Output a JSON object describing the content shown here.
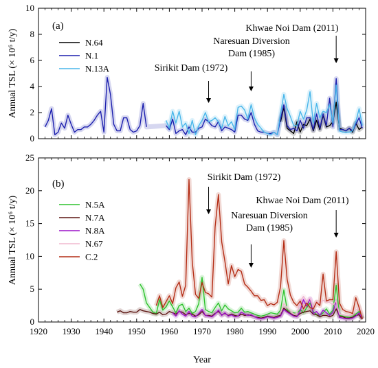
{
  "chart_data": [
    {
      "type": "line",
      "panel_label": "(a)",
      "ylabel": "Annual TSL (× 10⁶ t/y)",
      "xlim": [
        1920,
        2020
      ],
      "ylim": [
        0,
        10
      ],
      "yticks": [
        0,
        2,
        4,
        6,
        8,
        10
      ],
      "xticks": [
        1920,
        1930,
        1940,
        1950,
        1960,
        1970,
        1980,
        1990,
        2000,
        2010,
        2020
      ],
      "legend": "top-left",
      "series": [
        {
          "name": "N.64",
          "color": "#000000",
          "x": [
            1994,
            1995,
            1996,
            1997,
            1998,
            1999,
            2000,
            2001,
            2002,
            2003,
            2004,
            2005,
            2006,
            2007,
            2008,
            2009,
            2010,
            2011,
            2012,
            2013,
            2014,
            2015,
            2016,
            2017,
            2018,
            2019
          ],
          "values": [
            1.3,
            2.4,
            0.8,
            0.6,
            0.4,
            1.3,
            0.5,
            1.1,
            1.0,
            1.5,
            0.6,
            1.4,
            0.7,
            1.8,
            0.9,
            1.0,
            1.3,
            2.8,
            0.8,
            0.7,
            0.6,
            0.8,
            0.5,
            1.2,
            0.7,
            0.9
          ]
        },
        {
          "name": "N.1",
          "color": "#1c1fae",
          "x": [
            1922,
            1923,
            1924,
            1925,
            1926,
            1927,
            1928,
            1929,
            1930,
            1931,
            1932,
            1933,
            1934,
            1935,
            1936,
            1937,
            1938,
            1939,
            1940,
            1941,
            1942,
            1943,
            1944,
            1945,
            1946,
            1947,
            1948,
            1949,
            1950,
            1951,
            1952,
            1953,
            1959,
            1960,
            1961,
            1962,
            1963,
            1964,
            1965,
            1966,
            1967,
            1968,
            1969,
            1970,
            1971,
            1972,
            1973,
            1974,
            1975,
            1976,
            1977,
            1978,
            1979,
            1980,
            1981,
            1982,
            1983,
            1984,
            1985,
            1986,
            1987,
            1988,
            1989,
            1990,
            1991,
            1992,
            1993,
            1994,
            1995,
            1996,
            1997,
            1998,
            1999,
            2000,
            2001,
            2002,
            2003,
            2004,
            2005,
            2006,
            2007,
            2008,
            2009,
            2010,
            2011,
            2012,
            2013,
            2014,
            2015,
            2016,
            2017,
            2018,
            2019
          ],
          "values": [
            0.9,
            1.4,
            2.3,
            0.3,
            0.5,
            1.2,
            0.8,
            1.8,
            1.1,
            0.5,
            0.7,
            0.7,
            0.9,
            0.9,
            1.1,
            1.4,
            1.8,
            2.1,
            0.5,
            4.7,
            3.4,
            1.1,
            0.6,
            0.6,
            1.6,
            1.6,
            0.7,
            0.5,
            0.6,
            1.0,
            2.7,
            0.9,
            1.0,
            0.7,
            1.5,
            0.4,
            0.6,
            0.7,
            0.3,
            0.9,
            0.5,
            0.5,
            0.8,
            0.9,
            1.5,
            1.3,
            1.0,
            0.9,
            1.3,
            0.6,
            0.9,
            0.8,
            0.7,
            0.5,
            1.8,
            1.8,
            1.5,
            1.4,
            2.0,
            1.1,
            0.6,
            0.5,
            0.5,
            0.4,
            0.4,
            0.5,
            0.3,
            1.5,
            2.6,
            1.0,
            0.7,
            0.8,
            0.6,
            1.4,
            0.8,
            1.6,
            1.6,
            0.7,
            1.9,
            0.8,
            1.9,
            1.0,
            3.1,
            0.9,
            4.6,
            0.7,
            0.7,
            0.6,
            0.8,
            0.6,
            1.1,
            1.6,
            0.8
          ]
        },
        {
          "name": "N.13A",
          "color": "#48b6ea",
          "x": [
            1959,
            1960,
            1961,
            1962,
            1963,
            1964,
            1965,
            1966,
            1967,
            1968,
            1969,
            1970,
            1971,
            1972,
            1973,
            1974,
            1975,
            1976,
            1977,
            1978,
            1979,
            1980,
            1981,
            1982,
            1983,
            1984,
            1985,
            1986,
            1987,
            1988,
            1989,
            1990,
            1991,
            1992,
            1993,
            1994,
            1995,
            1996,
            1997,
            1998,
            1999,
            2000,
            2001,
            2002,
            2003,
            2004,
            2005,
            2006,
            2007,
            2008,
            2009,
            2010,
            2011,
            2012,
            2013,
            2014,
            2015,
            2016,
            2017,
            2018,
            2019
          ],
          "values": [
            1.4,
            0.8,
            2.1,
            1.2,
            2.1,
            0.9,
            1.2,
            0.4,
            1.4,
            0.3,
            1.0,
            1.4,
            2.0,
            1.3,
            1.4,
            1.6,
            1.3,
            0.8,
            1.7,
            1.0,
            1.3,
            0.7,
            2.4,
            2.5,
            2.2,
            1.5,
            2.6,
            1.6,
            1.1,
            0.8,
            0.5,
            0.4,
            0.3,
            0.5,
            0.3,
            1.9,
            3.4,
            2.3,
            1.7,
            1.0,
            1.0,
            2.1,
            1.5,
            2.2,
            3.6,
            1.2,
            2.7,
            1.6,
            2.1,
            2.0,
            2.6,
            1.2,
            4.1,
            0.6,
            0.5,
            0.5,
            0.5,
            0.6,
            1.3,
            2.3,
            1.0
          ]
        }
      ],
      "annotations": [
        {
          "lines": [
            "Sirikit Dam (1972)"
          ],
          "year": 1972
        },
        {
          "lines": [
            "Naresuan Diversion",
            "Dam (1985)"
          ],
          "year": 1985
        },
        {
          "lines": [
            "Khwae Noi Dam (2011)"
          ],
          "year": 2011
        }
      ]
    },
    {
      "type": "line",
      "panel_label": "(b)",
      "ylabel": "Annual TSL (× 10⁶ t/y)",
      "xlabel": "Year",
      "xlim": [
        1920,
        2020
      ],
      "ylim": [
        0,
        25
      ],
      "yticks": [
        0,
        5,
        10,
        15,
        20,
        25
      ],
      "xticks": [
        1920,
        1930,
        1940,
        1950,
        1960,
        1970,
        1980,
        1990,
        2000,
        2010,
        2020
      ],
      "legend": "left",
      "series": [
        {
          "name": "N.5A",
          "color": "#2dc22d",
          "x": [
            1951,
            1952,
            1953,
            1954,
            1955,
            1956,
            1957,
            1958,
            1959,
            1960,
            1961,
            1962,
            1963,
            1964,
            1965,
            1966,
            1967,
            1968,
            1969,
            1970,
            1971,
            1972,
            1973,
            1974,
            1975,
            1976,
            1977,
            1978,
            1979,
            1980,
            1981,
            1982,
            1983,
            1984,
            1985,
            1986,
            1987,
            1988,
            1989,
            1990,
            1991,
            1992,
            1993,
            1994,
            1995,
            1996,
            1997,
            1998,
            1999,
            2000,
            2001,
            2002,
            2003,
            2004,
            2005,
            2006,
            2007,
            2008,
            2009,
            2010,
            2011,
            2012,
            2013,
            2014,
            2015,
            2016,
            2017,
            2018,
            2019
          ],
          "values": [
            5.8,
            5.0,
            2.9,
            2.2,
            1.5,
            1.3,
            3.4,
            1.8,
            2.3,
            3.2,
            2.3,
            1.4,
            2.5,
            2.7,
            1.6,
            2.1,
            1.3,
            1.6,
            2.8,
            6.8,
            1.9,
            1.6,
            1.4,
            2.2,
            2.9,
            1.7,
            2.6,
            2.0,
            1.7,
            1.4,
            1.5,
            2.1,
            1.5,
            1.6,
            1.4,
            1.2,
            1.0,
            0.9,
            1.0,
            1.2,
            1.4,
            1.3,
            1.2,
            1.8,
            4.9,
            1.9,
            1.6,
            1.4,
            1.3,
            1.9,
            1.4,
            2.2,
            2.9,
            1.6,
            1.1,
            1.0,
            1.4,
            2.0,
            1.2,
            1.8,
            5.6,
            1.0,
            0.9,
            0.8,
            0.7,
            0.8,
            1.2,
            1.6,
            0.6
          ]
        },
        {
          "name": "N.7A",
          "color": "#5b1410",
          "x": [
            1944,
            1945,
            1946,
            1947,
            1948,
            1949,
            1950,
            1951,
            1952,
            1953,
            1954,
            1955,
            1956,
            1957,
            1958,
            1959,
            1960,
            1961,
            1962,
            1963,
            1964,
            1965,
            1966,
            1967,
            1968,
            1969,
            1970,
            1971,
            1972,
            1973,
            1974,
            1975,
            1976,
            1977,
            1978,
            1979,
            1980,
            1981,
            1982,
            1983,
            1984,
            1985,
            1986,
            1987,
            1988,
            1989,
            1990,
            1991,
            1992,
            1993,
            1994,
            1995,
            1996,
            1997,
            1998,
            1999,
            2000,
            2001,
            2002,
            2003,
            2004,
            2005,
            2006,
            2007,
            2008,
            2009,
            2010,
            2011,
            2012,
            2013,
            2014,
            2015,
            2016,
            2017,
            2018,
            2019
          ],
          "values": [
            1.5,
            1.7,
            1.4,
            1.4,
            1.6,
            1.5,
            1.5,
            1.9,
            1.7,
            1.6,
            1.5,
            1.3,
            1.2,
            1.5,
            1.1,
            1.2,
            1.6,
            1.4,
            1.2,
            1.6,
            1.5,
            1.1,
            1.3,
            1.2,
            0.9,
            1.1,
            1.6,
            1.0,
            1.0,
            0.9,
            1.3,
            1.6,
            1.1,
            1.3,
            1.0,
            1.2,
            1.0,
            0.9,
            1.2,
            1.0,
            1.1,
            1.0,
            0.8,
            0.7,
            0.6,
            0.7,
            0.9,
            0.8,
            0.7,
            0.9,
            1.0,
            2.1,
            1.7,
            1.3,
            1.0,
            0.9,
            1.3,
            1.5,
            1.6,
            1.7,
            1.2,
            1.1,
            0.8,
            1.0,
            1.0,
            0.8,
            1.0,
            2.0,
            0.9,
            0.8,
            0.6,
            0.6,
            0.7,
            1.0,
            1.1,
            0.4
          ]
        },
        {
          "name": "N.8A",
          "color": "#9b10c9",
          "x": [
            1961,
            1962,
            1963,
            1964,
            1965,
            1966,
            1967,
            1968,
            1969,
            1970,
            1971,
            1972,
            1973,
            1974,
            1975,
            1976,
            1977,
            1978,
            1979,
            1980,
            1981,
            1982,
            1983,
            1984,
            1985,
            1986,
            1987,
            1988,
            1989,
            1990,
            1991,
            1992,
            1993,
            1994,
            1995,
            1996,
            1997,
            1998,
            1999,
            2000,
            2001,
            2002,
            2003,
            2004,
            2005,
            2006,
            2007,
            2008,
            2009,
            2010,
            2011,
            2012,
            2013,
            2014,
            2015,
            2016,
            2017,
            2018,
            2019
          ],
          "values": [
            1.4,
            0.9,
            1.7,
            1.2,
            0.9,
            1.6,
            0.9,
            0.8,
            1.3,
            1.9,
            1.0,
            0.9,
            0.8,
            1.2,
            1.8,
            1.0,
            1.4,
            0.9,
            1.1,
            0.8,
            0.9,
            1.5,
            1.2,
            1.0,
            1.1,
            0.8,
            0.6,
            0.5,
            0.6,
            0.8,
            0.7,
            0.6,
            0.7,
            0.9,
            1.9,
            1.5,
            1.2,
            0.9,
            0.8,
            1.7,
            3.4,
            2.4,
            3.5,
            1.3,
            1.6,
            1.0,
            1.8,
            1.4,
            1.0,
            1.5,
            3.2,
            0.7,
            0.6,
            0.5,
            0.5,
            0.6,
            0.9,
            1.4,
            0.5
          ]
        },
        {
          "name": "N.67",
          "color": "#f0b8cf",
          "x": [
            1994,
            1995,
            1996,
            1997,
            1998,
            1999,
            2000,
            2001,
            2002,
            2003,
            2004,
            2005,
            2006,
            2007,
            2008,
            2009,
            2010,
            2011,
            2012,
            2013,
            2014,
            2015,
            2016,
            2017,
            2018,
            2019
          ],
          "values": [
            1.5,
            2.8,
            2.2,
            1.7,
            1.2,
            1.3,
            3.2,
            3.9,
            3.2,
            3.6,
            2.2,
            3.1,
            2.9,
            3.3,
            3.1,
            3.0,
            2.6,
            3.2,
            1.2,
            1.1,
            1.0,
            1.0,
            1.2,
            1.8,
            2.2,
            1.0
          ]
        },
        {
          "name": "C.2",
          "color": "#b42d15",
          "x": [
            1956,
            1957,
            1958,
            1959,
            1960,
            1961,
            1962,
            1963,
            1964,
            1965,
            1966,
            1967,
            1968,
            1969,
            1970,
            1971,
            1972,
            1973,
            1974,
            1975,
            1976,
            1977,
            1978,
            1979,
            1980,
            1981,
            1982,
            1983,
            1984,
            1985,
            1986,
            1987,
            1988,
            1989,
            1990,
            1991,
            1992,
            1993,
            1994,
            1995,
            1996,
            1997,
            1998,
            1999,
            2000,
            2001,
            2002,
            2003,
            2004,
            2005,
            2006,
            2007,
            2008,
            2009,
            2010,
            2011,
            2012,
            2013,
            2014,
            2015,
            2016,
            2017,
            2018,
            2019
          ],
          "values": [
            2.5,
            4.0,
            2.2,
            3.1,
            4.0,
            2.8,
            5.2,
            6.1,
            3.9,
            5.6,
            21.7,
            9.2,
            4.2,
            3.6,
            6.0,
            4.5,
            4.3,
            3.8,
            14.5,
            19.4,
            12.2,
            9.2,
            5.8,
            8.6,
            6.9,
            8.0,
            7.7,
            5.8,
            5.3,
            4.7,
            4.0,
            4.0,
            3.3,
            3.4,
            2.5,
            2.8,
            2.6,
            3.0,
            5.4,
            12.4,
            6.5,
            4.1,
            3.0,
            2.5,
            3.2,
            2.0,
            2.9,
            2.2,
            2.0,
            3.0,
            2.5,
            7.3,
            3.2,
            3.4,
            3.4,
            10.7,
            2.9,
            1.9,
            1.6,
            1.5,
            1.3,
            3.7,
            2.2,
            0.5
          ]
        }
      ],
      "annotations": [
        {
          "lines": [
            "Sirikit Dam (1972)"
          ],
          "year": 1972
        },
        {
          "lines": [
            "Naresuan Diversion",
            "Dam (1985)"
          ],
          "year": 1985
        },
        {
          "lines": [
            "Khwae Noi Dam (2011)"
          ],
          "year": 2011
        }
      ]
    }
  ]
}
